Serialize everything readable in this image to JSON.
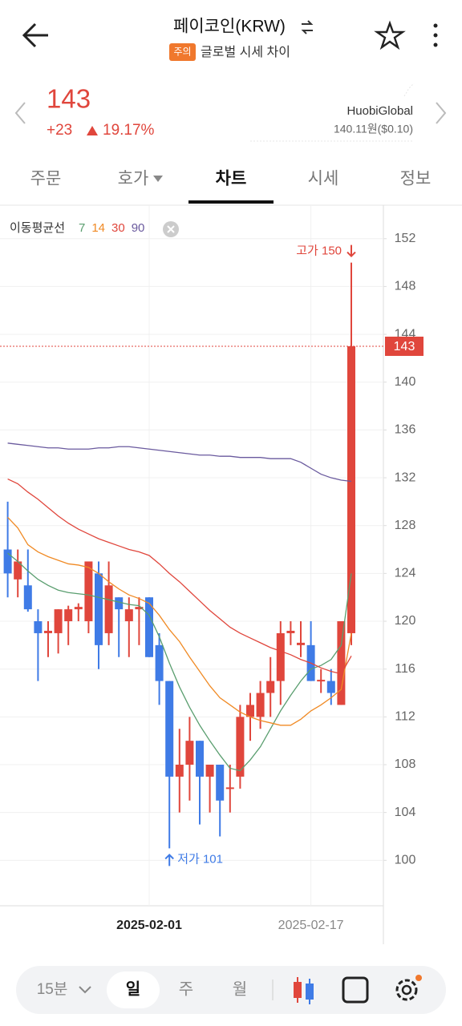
{
  "header": {
    "title": "페이코인(KRW)",
    "badge": "주의",
    "subtitle": "글로벌 시세 차이"
  },
  "price": {
    "current": 143,
    "change": "+23",
    "change_pct": "19.17%",
    "exchange": "HuobiGlobal",
    "reference": "140.11원($0.10)"
  },
  "tabs": [
    "주문",
    "호가",
    "차트",
    "시세",
    "정보"
  ],
  "chart_data": {
    "type": "candlestick",
    "legend_title": "이동평균선",
    "categories": [
      null,
      null,
      null,
      null,
      null,
      null,
      null,
      null,
      null,
      null,
      null,
      null,
      null,
      null,
      "2025-02-01",
      null,
      null,
      null,
      null,
      null,
      null,
      null,
      null,
      null,
      null,
      null,
      null,
      null,
      null,
      null,
      "2025-02-17",
      null,
      null,
      null,
      null
    ],
    "open": [
      126,
      123.5,
      123,
      120,
      119,
      119,
      120,
      121,
      120,
      124,
      119,
      122,
      120,
      121,
      122,
      118,
      115,
      107,
      108,
      110,
      107,
      108,
      106,
      107,
      112,
      112,
      114,
      115,
      119,
      118,
      118,
      115,
      115,
      113,
      119
    ],
    "high": [
      130,
      126,
      126,
      121,
      120,
      121,
      121.3,
      121.5,
      125,
      125,
      125,
      122,
      122,
      122,
      122,
      119,
      115,
      111,
      112,
      110,
      108,
      108,
      108,
      113,
      114,
      115,
      117,
      120,
      120,
      120,
      120,
      116,
      116,
      120,
      150
    ],
    "low": [
      122,
      122,
      120.8,
      115,
      117,
      117.3,
      118,
      120,
      119,
      116,
      118,
      117,
      117,
      118,
      117,
      113,
      101,
      104,
      105,
      103,
      104,
      102,
      104,
      106,
      110,
      111,
      112,
      113,
      118,
      117,
      115,
      114,
      113,
      113,
      118
    ],
    "close": [
      124,
      125,
      121,
      119,
      119.2,
      121,
      121,
      121.2,
      125,
      118,
      123,
      121,
      121,
      121.2,
      117,
      115,
      107,
      108,
      110,
      107,
      108,
      105,
      106.1,
      112,
      113,
      114,
      115,
      119,
      119.2,
      118.2,
      115,
      115.1,
      114,
      120,
      143
    ],
    "up_color": "#e0463c",
    "down_color": "#3f7be6",
    "moving_averages": [
      {
        "name": "7",
        "color": "#5a9e6f",
        "values": [
          125.7,
          125,
          124.2,
          123.5,
          123,
          122.6,
          122.4,
          122.3,
          122.2,
          122,
          121.8,
          121.6,
          121.4,
          121.3,
          120.5,
          118.7,
          116.5,
          114.5,
          112.8,
          111.3,
          110,
          108.8,
          107.7,
          107.5,
          108.4,
          109.5,
          111,
          112.5,
          113.8,
          115,
          116,
          116.3,
          116.8,
          118,
          124
        ]
      },
      {
        "name": "14",
        "color": "#f08a24",
        "values": [
          128.7,
          127.8,
          126.4,
          125.8,
          125.4,
          125.1,
          124.8,
          124.7,
          124.5,
          124,
          123.3,
          122.7,
          122.2,
          121.9,
          121.5,
          120.5,
          119.3,
          118.3,
          117,
          115.8,
          114.6,
          113.6,
          113,
          112.4,
          112,
          111.7,
          111.5,
          111.3,
          111.3,
          111.8,
          112.5,
          113,
          113.6,
          114.3,
          119
        ]
      },
      {
        "name": "30",
        "color": "#e0463c",
        "values": [
          131.9,
          131.5,
          130.8,
          130.2,
          129.5,
          128.8,
          128.2,
          127.7,
          127.3,
          126.9,
          126.6,
          126.3,
          126,
          125.8,
          125.5,
          124.8,
          124,
          123.3,
          122.5,
          121.7,
          120.9,
          120.2,
          119.5,
          119,
          118.6,
          118.2,
          117.8,
          117.5,
          117.2,
          116.8,
          116.5,
          116.1,
          115.8,
          115.6,
          117.1
        ]
      },
      {
        "name": "90",
        "color": "#6a5a9e",
        "values": [
          134.9,
          134.8,
          134.7,
          134.6,
          134.5,
          134.5,
          134.4,
          134.4,
          134.4,
          134.5,
          134.5,
          134.6,
          134.6,
          134.5,
          134.4,
          134.3,
          134.2,
          134.1,
          134,
          133.9,
          133.9,
          133.8,
          133.8,
          133.7,
          133.7,
          133.7,
          133.6,
          133.6,
          133.6,
          133.3,
          132.8,
          132.3,
          132,
          131.8,
          131.7
        ]
      }
    ],
    "ylim": [
      96.2,
      154.8
    ],
    "yticks": [
      100,
      104,
      108,
      112,
      116,
      120,
      124,
      128,
      132,
      136,
      140,
      144,
      148,
      152
    ],
    "grid": true,
    "last_price": 143,
    "high_label": "고가 150",
    "low_label": "저가 101"
  },
  "toolbar": {
    "interval": "15분",
    "periods": [
      "일",
      "주",
      "월"
    ]
  }
}
